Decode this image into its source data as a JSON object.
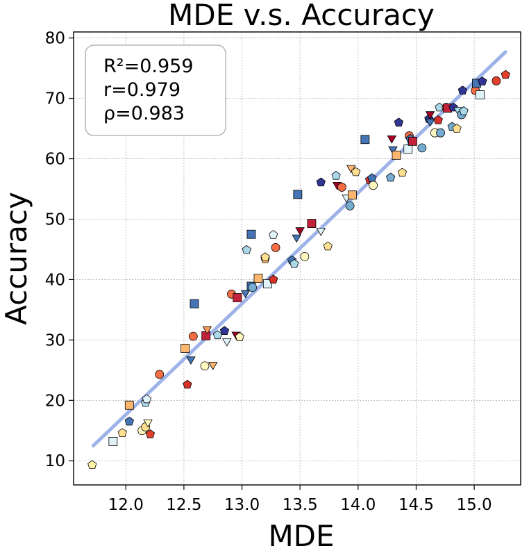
{
  "chart_data": {
    "type": "scatter",
    "title": "MDE  v.s.  Accuracy",
    "xlabel": "MDE",
    "ylabel": "Accuracy",
    "xlim": [
      11.55,
      15.4
    ],
    "ylim": [
      6,
      81
    ],
    "xticks": [
      12.0,
      12.5,
      13.0,
      13.5,
      14.0,
      14.5,
      15.0
    ],
    "xtick_labels": [
      "12.0",
      "12.5",
      "13.0",
      "13.5",
      "14.0",
      "14.5",
      "15.0"
    ],
    "yticks": [
      10,
      20,
      30,
      40,
      50,
      60,
      70,
      80
    ],
    "ytick_labels": [
      "10",
      "20",
      "30",
      "40",
      "50",
      "60",
      "70",
      "80"
    ],
    "grid": true,
    "fit_line": {
      "x": [
        11.72,
        15.27
      ],
      "y": [
        12.5,
        77.7
      ],
      "color": "#9db3e8"
    },
    "stats": [
      "R²=0.959",
      "r=0.979",
      "ρ=0.983"
    ],
    "points": [
      {
        "x": 11.71,
        "y": 9.3,
        "m": "pentagon",
        "c": "#fdf3a8"
      },
      {
        "x": 11.89,
        "y": 13.2,
        "m": "square",
        "c": "#e0f3f8"
      },
      {
        "x": 11.97,
        "y": 14.6,
        "m": "pentagon",
        "c": "#fee090"
      },
      {
        "x": 12.03,
        "y": 19.2,
        "m": "square",
        "c": "#fdb66e"
      },
      {
        "x": 12.03,
        "y": 16.5,
        "m": "pentagon",
        "c": "#4575b4"
      },
      {
        "x": 12.14,
        "y": 15.0,
        "m": "circle",
        "c": "#fff8c0"
      },
      {
        "x": 12.17,
        "y": 15.6,
        "m": "circle",
        "c": "#fee090"
      },
      {
        "x": 12.17,
        "y": 19.6,
        "m": "pentagon",
        "c": "#abd9e9"
      },
      {
        "x": 12.18,
        "y": 20.2,
        "m": "pentagon",
        "c": "#e0f3f8"
      },
      {
        "x": 12.19,
        "y": 16.4,
        "m": "tri_down",
        "c": "#fff8c0"
      },
      {
        "x": 12.21,
        "y": 14.4,
        "m": "pentagon",
        "c": "#e4402e"
      },
      {
        "x": 12.29,
        "y": 24.3,
        "m": "circle",
        "c": "#f46d43"
      },
      {
        "x": 12.51,
        "y": 28.6,
        "m": "square",
        "c": "#fdb66e"
      },
      {
        "x": 12.53,
        "y": 22.6,
        "m": "pentagon",
        "c": "#d73027"
      },
      {
        "x": 12.56,
        "y": 26.8,
        "m": "tri_down",
        "c": "#4575b4"
      },
      {
        "x": 12.58,
        "y": 30.6,
        "m": "circle",
        "c": "#f46d43"
      },
      {
        "x": 12.59,
        "y": 36.0,
        "m": "square",
        "c": "#4575b4"
      },
      {
        "x": 12.68,
        "y": 25.7,
        "m": "circle",
        "c": "#fff8c0"
      },
      {
        "x": 12.69,
        "y": 30.7,
        "m": "square",
        "c": "#c2223a"
      },
      {
        "x": 12.7,
        "y": 31.8,
        "m": "tri_down",
        "c": "#fc9c5a"
      },
      {
        "x": 12.75,
        "y": 25.9,
        "m": "tri_down",
        "c": "#fdb66e"
      },
      {
        "x": 12.79,
        "y": 30.8,
        "m": "pentagon",
        "c": "#abd9e9"
      },
      {
        "x": 12.85,
        "y": 31.5,
        "m": "pentagon",
        "c": "#313695"
      },
      {
        "x": 12.87,
        "y": 29.8,
        "m": "tri_down",
        "c": "#e0f3f8"
      },
      {
        "x": 12.91,
        "y": 37.6,
        "m": "circle",
        "c": "#f46d43"
      },
      {
        "x": 12.95,
        "y": 30.9,
        "m": "tri_down",
        "c": "#a50026"
      },
      {
        "x": 12.96,
        "y": 37.0,
        "m": "square",
        "c": "#c2223a"
      },
      {
        "x": 12.98,
        "y": 30.5,
        "m": "pentagon",
        "c": "#fff8c0"
      },
      {
        "x": 13.03,
        "y": 37.8,
        "m": "tri_down",
        "c": "#4575b4"
      },
      {
        "x": 13.04,
        "y": 44.9,
        "m": "pentagon",
        "c": "#abd9e9"
      },
      {
        "x": 13.08,
        "y": 38.9,
        "m": "square",
        "c": "#4575b4"
      },
      {
        "x": 13.08,
        "y": 47.5,
        "m": "square",
        "c": "#4575b4"
      },
      {
        "x": 13.09,
        "y": 38.7,
        "m": "circle",
        "c": "#74add1"
      },
      {
        "x": 13.14,
        "y": 40.2,
        "m": "square",
        "c": "#fdb66e"
      },
      {
        "x": 13.2,
        "y": 43.4,
        "m": "pentagon",
        "c": "#fdb66e"
      },
      {
        "x": 13.2,
        "y": 43.7,
        "m": "pentagon",
        "c": "#fee090"
      },
      {
        "x": 13.22,
        "y": 39.3,
        "m": "square",
        "c": "#e0f3f8"
      },
      {
        "x": 13.27,
        "y": 40.0,
        "m": "pentagon",
        "c": "#d73027"
      },
      {
        "x": 13.27,
        "y": 47.4,
        "m": "pentagon",
        "c": "#e0f3f8"
      },
      {
        "x": 13.29,
        "y": 45.3,
        "m": "circle",
        "c": "#f46d43"
      },
      {
        "x": 13.43,
        "y": 43.2,
        "m": "pentagon",
        "c": "#4575b4"
      },
      {
        "x": 13.45,
        "y": 42.6,
        "m": "pentagon",
        "c": "#abd9e9"
      },
      {
        "x": 13.47,
        "y": 47.0,
        "m": "tri_down",
        "c": "#4575b4"
      },
      {
        "x": 13.48,
        "y": 54.1,
        "m": "square",
        "c": "#4575b4"
      },
      {
        "x": 13.5,
        "y": 48.2,
        "m": "tri_down",
        "c": "#a50026"
      },
      {
        "x": 13.54,
        "y": 43.8,
        "m": "circle",
        "c": "#fff8c0"
      },
      {
        "x": 13.6,
        "y": 49.3,
        "m": "square",
        "c": "#c2223a"
      },
      {
        "x": 13.68,
        "y": 56.1,
        "m": "pentagon",
        "c": "#313695"
      },
      {
        "x": 13.68,
        "y": 48.1,
        "m": "tri_down",
        "c": "#e0f3f8"
      },
      {
        "x": 13.74,
        "y": 45.5,
        "m": "pentagon",
        "c": "#fee090"
      },
      {
        "x": 13.81,
        "y": 57.2,
        "m": "pentagon",
        "c": "#abd9e9"
      },
      {
        "x": 13.82,
        "y": 55.7,
        "m": "tri_down",
        "c": "#a50026"
      },
      {
        "x": 13.86,
        "y": 55.3,
        "m": "circle",
        "c": "#f46d43"
      },
      {
        "x": 13.9,
        "y": 53.6,
        "m": "tri_down",
        "c": "#e0f3f8"
      },
      {
        "x": 13.93,
        "y": 52.2,
        "m": "circle",
        "c": "#74add1"
      },
      {
        "x": 13.94,
        "y": 58.5,
        "m": "tri_down",
        "c": "#fdb66e"
      },
      {
        "x": 13.95,
        "y": 54.0,
        "m": "square",
        "c": "#fdb66e"
      },
      {
        "x": 13.98,
        "y": 57.8,
        "m": "pentagon",
        "c": "#fee090"
      },
      {
        "x": 14.06,
        "y": 63.2,
        "m": "square",
        "c": "#4575b4"
      },
      {
        "x": 14.1,
        "y": 56.5,
        "m": "pentagon",
        "c": "#d73027"
      },
      {
        "x": 14.12,
        "y": 56.8,
        "m": "pentagon",
        "c": "#4575b4"
      },
      {
        "x": 14.13,
        "y": 55.6,
        "m": "circle",
        "c": "#fff8c0"
      },
      {
        "x": 14.28,
        "y": 56.9,
        "m": "pentagon",
        "c": "#74add1"
      },
      {
        "x": 14.29,
        "y": 63.4,
        "m": "tri_down",
        "c": "#a50026"
      },
      {
        "x": 14.3,
        "y": 61.6,
        "m": "tri_down",
        "c": "#4575b4"
      },
      {
        "x": 14.33,
        "y": 60.6,
        "m": "square",
        "c": "#fdb66e"
      },
      {
        "x": 14.35,
        "y": 66.0,
        "m": "pentagon",
        "c": "#313695"
      },
      {
        "x": 14.38,
        "y": 57.7,
        "m": "pentagon",
        "c": "#fee090"
      },
      {
        "x": 14.43,
        "y": 61.6,
        "m": "square",
        "c": "#e0f3f8"
      },
      {
        "x": 14.44,
        "y": 63.8,
        "m": "circle",
        "c": "#f46d43"
      },
      {
        "x": 14.45,
        "y": 63.3,
        "m": "pentagon",
        "c": "#4575b4"
      },
      {
        "x": 14.47,
        "y": 62.9,
        "m": "square",
        "c": "#c2223a"
      },
      {
        "x": 14.55,
        "y": 61.8,
        "m": "circle",
        "c": "#74add1"
      },
      {
        "x": 14.61,
        "y": 66.6,
        "m": "pentagon",
        "c": "#313695"
      },
      {
        "x": 14.62,
        "y": 67.4,
        "m": "tri_down",
        "c": "#a50026"
      },
      {
        "x": 14.62,
        "y": 66.2,
        "m": "tri_down",
        "c": "#4575b4"
      },
      {
        "x": 14.66,
        "y": 64.3,
        "m": "circle",
        "c": "#fff8c0"
      },
      {
        "x": 14.69,
        "y": 66.4,
        "m": "pentagon",
        "c": "#d73027"
      },
      {
        "x": 14.7,
        "y": 68.5,
        "m": "pentagon",
        "c": "#abd9e9"
      },
      {
        "x": 14.71,
        "y": 64.3,
        "m": "circle",
        "c": "#74add1"
      },
      {
        "x": 14.76,
        "y": 68.5,
        "m": "circle",
        "c": "#f46d43"
      },
      {
        "x": 14.77,
        "y": 68.4,
        "m": "square",
        "c": "#c2223a"
      },
      {
        "x": 14.81,
        "y": 65.3,
        "m": "pentagon",
        "c": "#74add1"
      },
      {
        "x": 14.82,
        "y": 68.5,
        "m": "pentagon",
        "c": "#313695"
      },
      {
        "x": 14.85,
        "y": 65.0,
        "m": "pentagon",
        "c": "#fee090"
      },
      {
        "x": 14.86,
        "y": 68.1,
        "m": "tri_down",
        "c": "#abd9e9"
      },
      {
        "x": 14.89,
        "y": 67.3,
        "m": "circle",
        "c": "#74add1"
      },
      {
        "x": 14.9,
        "y": 71.3,
        "m": "pentagon",
        "c": "#313695"
      },
      {
        "x": 14.91,
        "y": 67.9,
        "m": "pentagon",
        "c": "#abd9e9"
      },
      {
        "x": 15.01,
        "y": 71.3,
        "m": "circle",
        "c": "#f46d43"
      },
      {
        "x": 15.02,
        "y": 72.5,
        "m": "square",
        "c": "#4575b4"
      },
      {
        "x": 15.05,
        "y": 70.6,
        "m": "square",
        "c": "#e0f3f8"
      },
      {
        "x": 15.07,
        "y": 72.8,
        "m": "pentagon",
        "c": "#313695"
      },
      {
        "x": 15.19,
        "y": 72.9,
        "m": "circle",
        "c": "#e4402e"
      },
      {
        "x": 15.27,
        "y": 73.9,
        "m": "pentagon",
        "c": "#e4402e"
      }
    ]
  }
}
